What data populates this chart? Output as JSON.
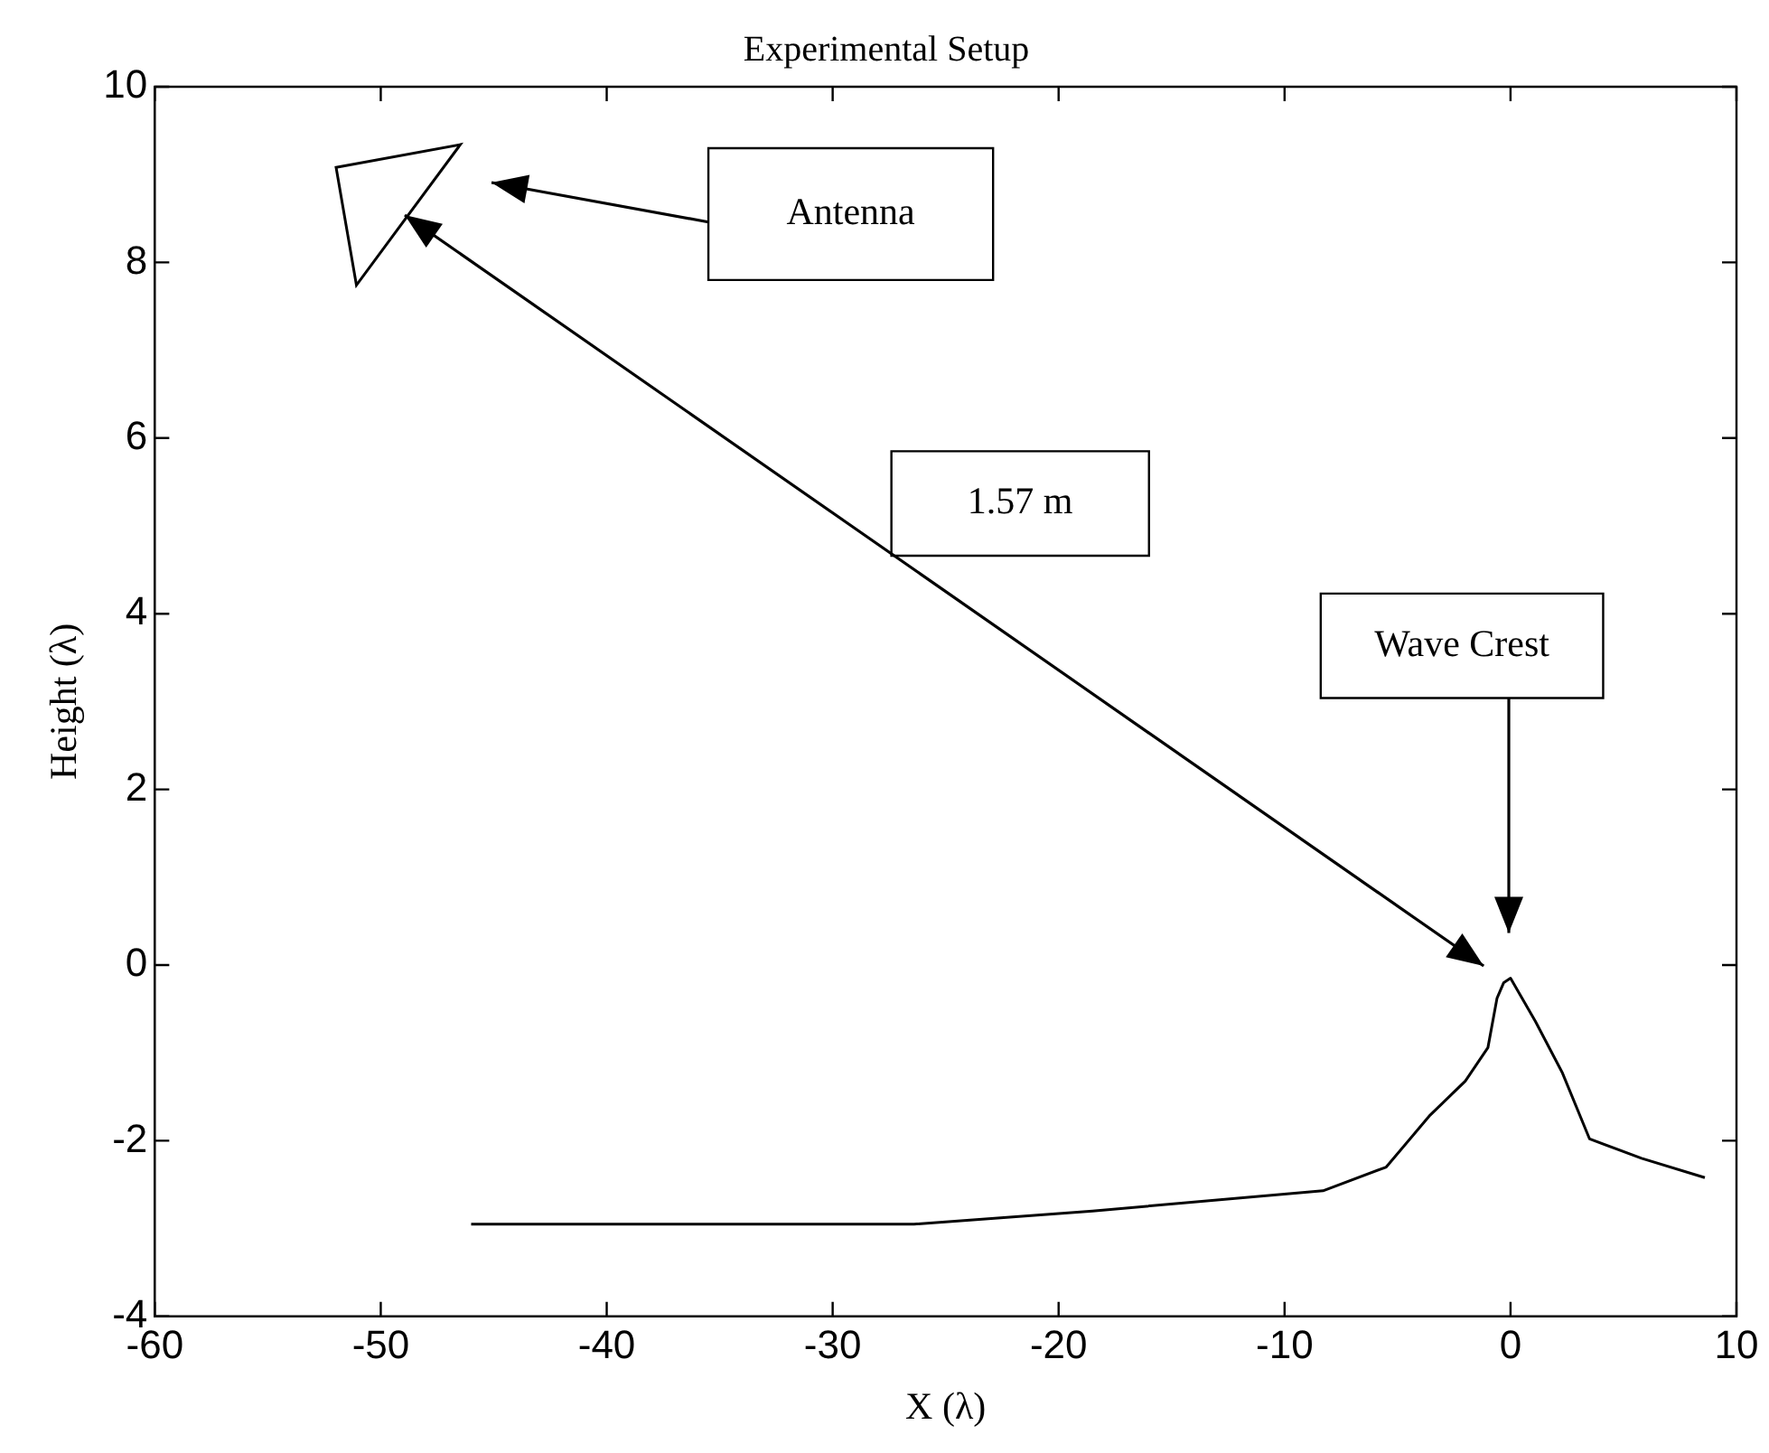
{
  "chart_data": {
    "type": "line",
    "title": "Experimental Setup",
    "xlabel": "X (λ)",
    "ylabel": "Height (λ)",
    "x": [
      -46,
      -26.4,
      -18.5,
      -8.3,
      -5.5,
      -3.6,
      -2.0,
      -1.0,
      -0.6,
      -0.3,
      0,
      1.1,
      2.3,
      3.5,
      5.8,
      8.6
    ],
    "series": [
      {
        "color": "#000000",
        "values": [
          -2.95,
          -2.95,
          -2.8,
          -2.57,
          -2.3,
          -1.72,
          -1.32,
          -0.94,
          -0.38,
          -0.2,
          -0.15,
          -0.64,
          -1.23,
          -1.98,
          -2.2,
          -2.42
        ]
      }
    ],
    "xlim": [
      -60,
      10
    ],
    "xticks": [
      -60,
      -50,
      -40,
      -30,
      -20,
      -10,
      0,
      10
    ],
    "ylim": [
      -4,
      10
    ],
    "yticks": [
      -4,
      -2,
      0,
      2,
      4,
      6,
      8,
      10
    ],
    "annotations": [
      "Antenna",
      "1.57 m",
      "Wave Crest"
    ],
    "grid": false,
    "legend": false,
    "marker": "none",
    "line_style": "solid"
  }
}
